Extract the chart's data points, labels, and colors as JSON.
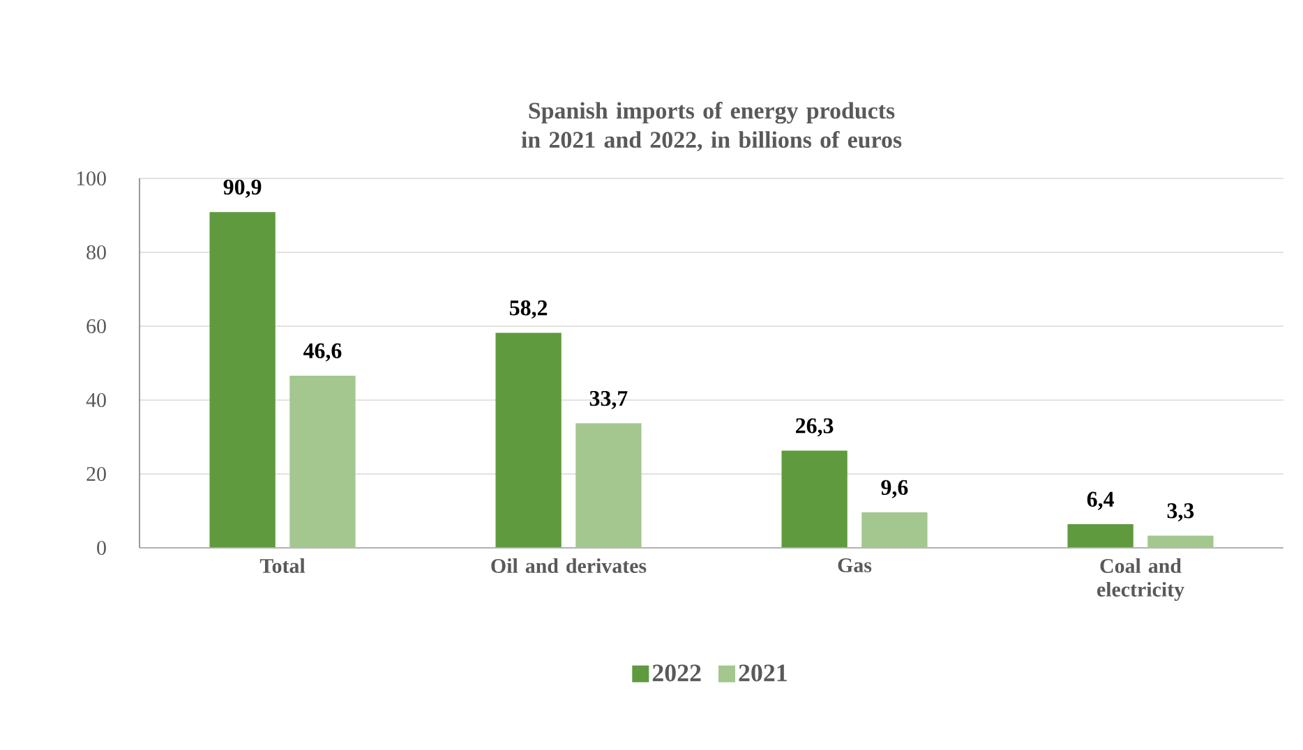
{
  "chart_data": {
    "type": "bar",
    "title": "Spanish imports of energy products in 2021 and 2022, in billions of euros",
    "categories": [
      "Total",
      "Oil and derivates",
      "Gas",
      "Coal and electricity"
    ],
    "series": [
      {
        "name": "2022",
        "color": "#609a3e",
        "values": [
          90.9,
          58.2,
          26.3,
          6.4
        ],
        "value_labels": [
          "90,9",
          "58,2",
          "26,3",
          "6,4"
        ]
      },
      {
        "name": "2021",
        "color": "#a4c68f",
        "values": [
          46.6,
          33.7,
          9.6,
          3.3
        ],
        "value_labels": [
          "46,6",
          "33,7",
          "9,6",
          "3,3"
        ]
      }
    ],
    "ylim": [
      0,
      100
    ],
    "yticks": [
      0,
      20,
      40,
      60,
      80,
      100
    ],
    "grid": "y",
    "legend": "bottom"
  }
}
